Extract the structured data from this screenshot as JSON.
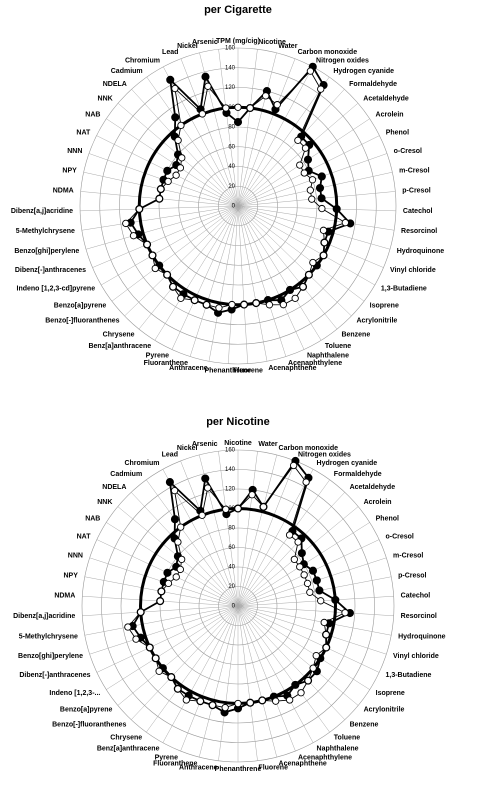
{
  "chart_data": [
    {
      "type": "radar",
      "title": "per Cigarette",
      "categories": [
        "TPM (mg/cig)",
        "Nicotine",
        "Water",
        "Carbon monoxide",
        "Nitrogen oxides",
        "Hydrogen cyanide",
        "Formaldehyde",
        "Acetaldehyde",
        "Acrolein",
        "Phenol",
        "o-Cresol",
        "m-Cresol",
        "p-Cresol",
        "Catechol",
        "Resorcinol",
        "Hydroquinone",
        "Vinyl chloride",
        "1,3-Butadiene",
        "Isoprene",
        "Acrylonitrile",
        "Benzene",
        "Toluene",
        "Naphthalene",
        "Acenaphthylene",
        "Acenaphthene",
        "Fluorene",
        "Phenanthrene",
        "Anthracene",
        "Fluoranthene",
        "Pyrene",
        "Benz[a]anthracene",
        "Chrysene",
        "Benzo[-]fluoranthenes",
        "Benzo[a]pyrene",
        "Indeno [1,2,3-cd]pyrene",
        "Dibenz[-]anthracenes",
        "Benzo[ghi]perylene",
        "5-Methylchrysene",
        "Dibenz[a,j]acridine",
        "NDMA",
        "NPY",
        "NNN",
        "NAT",
        "NAB",
        "NNK",
        "NDELA",
        "Cadmium",
        "Chromium",
        "Lead",
        "Nickel",
        "Arsenic"
      ],
      "series": [
        {
          "color": "#000000",
          "marker": "filled",
          "values": [
            85,
            100,
            120,
            105,
            160,
            150,
            95,
            95,
            85,
            80,
            90,
            85,
            85,
            100,
            115,
            95,
            95,
            100,
            100,
            100,
            105,
            100,
            105,
            100,
            100,
            100,
            105,
            110,
            105,
            105,
            105,
            105,
            100,
            100,
            100,
            100,
            105,
            110,
            100,
            80,
            80,
            80,
            80,
            75,
            80,
            95,
            110,
            145,
            105,
            135,
            95
          ]
        },
        {
          "color": "#000000",
          "marker": "open",
          "values": [
            100,
            100,
            115,
            110,
            155,
            145,
            90,
            90,
            75,
            75,
            80,
            75,
            75,
            85,
            110,
            90,
            95,
            100,
            95,
            100,
            105,
            110,
            110,
            105,
            100,
            100,
            100,
            105,
            105,
            105,
            110,
            105,
            100,
            105,
            100,
            100,
            110,
            115,
            100,
            80,
            80,
            75,
            70,
            70,
            75,
            90,
            100,
            135,
            100,
            125,
            100
          ]
        }
      ],
      "reference_circle": 100,
      "ylim": [
        0,
        160
      ],
      "yticks": [
        0,
        20,
        40,
        60,
        80,
        100,
        120,
        140,
        160
      ],
      "grid": true
    },
    {
      "type": "radar",
      "title": "per Nicotine",
      "categories": [
        "Nicotine",
        "Water",
        "Carbon monoxide",
        "Nitrogen oxides",
        "Hydrogen cyanide",
        "Formaldehyde",
        "Acetaldehyde",
        "Acrolein",
        "Phenol",
        "o-Cresol",
        "m-Cresol",
        "p-Cresol",
        "Catechol",
        "Resorcinol",
        "Hydroquinone",
        "Vinyl chloride",
        "1,3-Butadiene",
        "Isoprene",
        "Acrylonitrile",
        "Benzene",
        "Toluene",
        "Naphthalene",
        "Acenaphthylene",
        "Acenaphthene",
        "Fluorene",
        "Phenanthrene",
        "Anthracene",
        "Fluoranthene",
        "Pyrene",
        "Benz[a]anthracene",
        "Chrysene",
        "Benzo[-]fluoranthenes",
        "Benzo[a]pyrene",
        "Indeno [1,2,3-...",
        "Dibenz[-]anthracenes",
        "Benzo[ghi]perylene",
        "5-Methylchrysene",
        "Dibenz[a,j]acridine",
        "NDMA",
        "NPY",
        "NNN",
        "NAT",
        "NAB",
        "NNK",
        "NDELA",
        "Cadmium",
        "Chromium",
        "Lead",
        "Nickel",
        "Arsenic"
      ],
      "series": [
        {
          "color": "#000000",
          "marker": "filled",
          "values": [
            100,
            120,
            105,
            160,
            150,
            95,
            95,
            85,
            80,
            85,
            85,
            85,
            100,
            115,
            95,
            95,
            100,
            100,
            105,
            105,
            100,
            105,
            100,
            100,
            100,
            105,
            110,
            105,
            105,
            105,
            105,
            100,
            100,
            100,
            100,
            105,
            110,
            100,
            80,
            80,
            80,
            80,
            75,
            80,
            95,
            110,
            145,
            105,
            135,
            95
          ]
        },
        {
          "color": "#000000",
          "marker": "open",
          "values": [
            100,
            115,
            105,
            155,
            145,
            90,
            90,
            75,
            75,
            75,
            75,
            75,
            85,
            110,
            90,
            95,
            100,
            95,
            100,
            105,
            110,
            110,
            105,
            100,
            100,
            100,
            105,
            105,
            105,
            110,
            105,
            100,
            105,
            100,
            100,
            110,
            115,
            100,
            80,
            80,
            75,
            70,
            70,
            75,
            90,
            100,
            135,
            100,
            125,
            100
          ]
        }
      ],
      "reference_circle": 100,
      "ylim": [
        0,
        160
      ],
      "yticks": [
        0,
        20,
        40,
        60,
        80,
        100,
        120,
        140,
        160
      ],
      "grid": true
    }
  ]
}
